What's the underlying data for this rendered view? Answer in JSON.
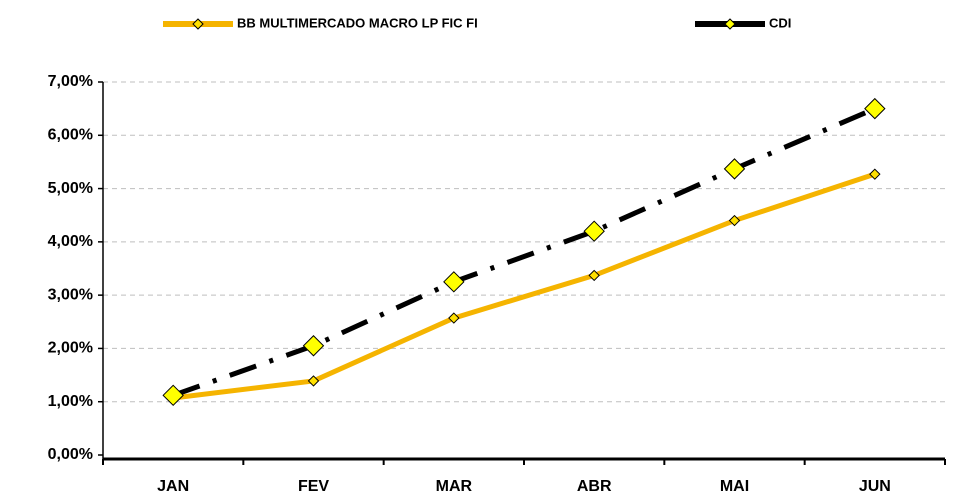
{
  "chart_data": {
    "type": "line",
    "categories": [
      "JAN",
      "FEV",
      "MAR",
      "ABR",
      "MAI",
      "JUN"
    ],
    "series": [
      {
        "name": "BB MULTIMERCADO MACRO LP FIC FI",
        "color": "#f5b400",
        "line_style": "solid",
        "marker_color": "#ffe000",
        "values": [
          1.07,
          1.39,
          2.57,
          3.37,
          4.4,
          5.27
        ]
      },
      {
        "name": "CDI",
        "color": "#000000",
        "line_style": "dashdot",
        "marker_color": "#ffff00",
        "values": [
          1.12,
          2.05,
          3.25,
          4.2,
          5.37,
          6.5
        ]
      }
    ],
    "ylim": [
      0,
      7
    ],
    "yticks": [
      {
        "value": 0,
        "label": "0,00%"
      },
      {
        "value": 1,
        "label": "1,00%"
      },
      {
        "value": 2,
        "label": "2,00%"
      },
      {
        "value": 3,
        "label": "3,00%"
      },
      {
        "value": 4,
        "label": "4,00%"
      },
      {
        "value": 5,
        "label": "5,00%"
      },
      {
        "value": 6,
        "label": "6,00%"
      },
      {
        "value": 7,
        "label": "7,00%"
      }
    ],
    "grid": true,
    "legend": "top"
  }
}
